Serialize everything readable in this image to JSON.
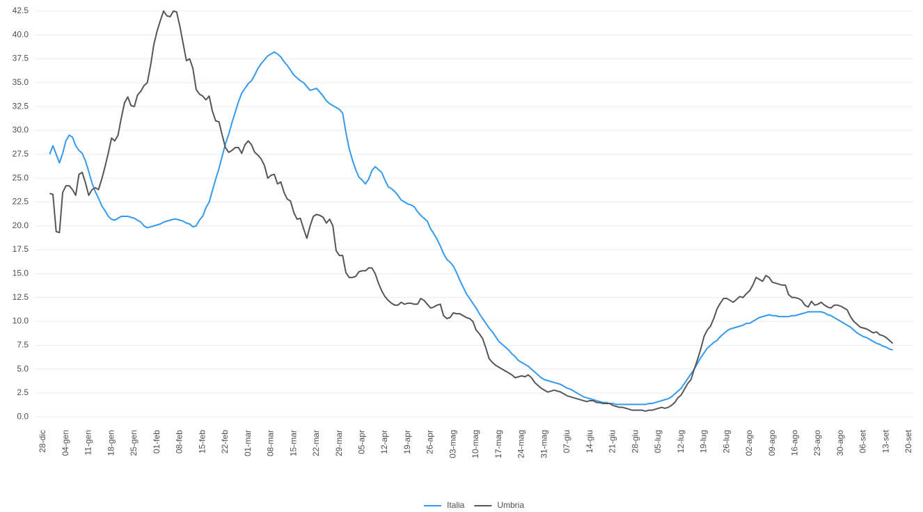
{
  "chart_data": {
    "type": "line",
    "categories": [
      "28-dic",
      null,
      null,
      null,
      null,
      null,
      null,
      "04-gen",
      null,
      null,
      null,
      null,
      null,
      null,
      "11-gen",
      null,
      null,
      null,
      null,
      null,
      null,
      "18-gen",
      null,
      null,
      null,
      null,
      null,
      null,
      "25-gen",
      null,
      null,
      null,
      null,
      null,
      null,
      "01-feb",
      null,
      null,
      null,
      null,
      null,
      null,
      "08-feb",
      null,
      null,
      null,
      null,
      null,
      null,
      "15-feb",
      null,
      null,
      null,
      null,
      null,
      null,
      "22-feb",
      null,
      null,
      null,
      null,
      null,
      null,
      "01-mar",
      null,
      null,
      null,
      null,
      null,
      null,
      "08-mar",
      null,
      null,
      null,
      null,
      null,
      null,
      "15-mar",
      null,
      null,
      null,
      null,
      null,
      null,
      "22-mar",
      null,
      null,
      null,
      null,
      null,
      null,
      "29-mar",
      null,
      null,
      null,
      null,
      null,
      null,
      "05-apr",
      null,
      null,
      null,
      null,
      null,
      null,
      "12-apr",
      null,
      null,
      null,
      null,
      null,
      null,
      "19-apr",
      null,
      null,
      null,
      null,
      null,
      null,
      "26-apr",
      null,
      null,
      null,
      null,
      null,
      null,
      "03-mag",
      null,
      null,
      null,
      null,
      null,
      null,
      "10-mag",
      null,
      null,
      null,
      null,
      null,
      null,
      "17-mag",
      null,
      null,
      null,
      null,
      null,
      null,
      "24-mag",
      null,
      null,
      null,
      null,
      null,
      null,
      "31-mag",
      null,
      null,
      null,
      null,
      null,
      null,
      "07-giu",
      null,
      null,
      null,
      null,
      null,
      null,
      "14-giu",
      null,
      null,
      null,
      null,
      null,
      null,
      "21-giu",
      null,
      null,
      null,
      null,
      null,
      null,
      "28-giu",
      null,
      null,
      null,
      null,
      null,
      null,
      "05-lug",
      null,
      null,
      null,
      null,
      null,
      null,
      "12-lug",
      null,
      null,
      null,
      null,
      null,
      null,
      "19-lug",
      null,
      null,
      null,
      null,
      null,
      null,
      "26-lug",
      null,
      null,
      null,
      null,
      null,
      null,
      "02-ago",
      null,
      null,
      null,
      null,
      null,
      null,
      "09-ago",
      null,
      null,
      null,
      null,
      null,
      null,
      "16-ago",
      null,
      null,
      null,
      null,
      null,
      null,
      "23-ago",
      null,
      null,
      null,
      null,
      null,
      null,
      "30-ago",
      null,
      null,
      null,
      null,
      null,
      null,
      "06-set",
      null,
      null,
      null,
      null,
      null,
      null,
      "13-set",
      null,
      null,
      null,
      null,
      null,
      null,
      "20-set"
    ],
    "series": [
      {
        "name": "Italia",
        "color": "#3399ee",
        "values": [
          null,
          null,
          27.5,
          28.4,
          27.5,
          26.6,
          27.6,
          28.9,
          29.5,
          29.3,
          28.4,
          27.9,
          27.6,
          26.8,
          25.7,
          24.5,
          23.6,
          22.9,
          22.1,
          21.6,
          21.0,
          20.7,
          20.6,
          20.8,
          21.0,
          21.0,
          21.0,
          20.9,
          20.8,
          20.6,
          20.4,
          20.0,
          19.8,
          19.9,
          20.0,
          20.1,
          20.2,
          20.4,
          20.5,
          20.6,
          20.7,
          20.7,
          20.6,
          20.5,
          20.3,
          20.2,
          19.9,
          20.0,
          20.6,
          21.0,
          21.9,
          22.5,
          23.7,
          24.9,
          26.0,
          27.3,
          28.6,
          29.6,
          30.8,
          31.9,
          33.0,
          33.9,
          34.4,
          34.9,
          35.2,
          35.8,
          36.5,
          37.0,
          37.4,
          37.8,
          38.0,
          38.2,
          38.0,
          37.7,
          37.2,
          36.8,
          36.3,
          35.8,
          35.5,
          35.2,
          35.0,
          34.6,
          34.2,
          34.3,
          34.4,
          34.0,
          33.6,
          33.1,
          32.8,
          32.6,
          32.4,
          32.2,
          31.8,
          29.8,
          28.1,
          26.9,
          25.9,
          25.1,
          24.8,
          24.4,
          24.9,
          25.8,
          26.2,
          25.9,
          25.6,
          24.8,
          24.1,
          23.9,
          23.6,
          23.2,
          22.7,
          22.5,
          22.3,
          22.2,
          22.0,
          21.5,
          21.1,
          20.8,
          20.5,
          19.7,
          19.2,
          18.6,
          17.9,
          17.1,
          16.5,
          16.2,
          15.8,
          15.1,
          14.3,
          13.6,
          12.9,
          12.4,
          11.9,
          11.4,
          10.8,
          10.3,
          9.8,
          9.3,
          8.9,
          8.4,
          7.9,
          7.6,
          7.3,
          7.0,
          6.6,
          6.3,
          5.9,
          5.7,
          5.5,
          5.3,
          5.0,
          4.7,
          4.4,
          4.1,
          3.9,
          3.8,
          3.7,
          3.6,
          3.5,
          3.4,
          3.2,
          3.0,
          2.9,
          2.7,
          2.5,
          2.3,
          2.1,
          2.0,
          1.9,
          1.8,
          1.7,
          1.6,
          1.5,
          1.5,
          1.4,
          1.4,
          1.3,
          1.3,
          1.3,
          1.3,
          1.3,
          1.3,
          1.3,
          1.3,
          1.3,
          1.3,
          1.4,
          1.4,
          1.5,
          1.6,
          1.7,
          1.8,
          1.9,
          2.1,
          2.4,
          2.7,
          3.0,
          3.5,
          4.0,
          4.5,
          5.0,
          5.6,
          6.2,
          6.7,
          7.2,
          7.5,
          7.8,
          8.0,
          8.4,
          8.7,
          9.0,
          9.2,
          9.3,
          9.4,
          9.5,
          9.6,
          9.8,
          9.8,
          10.0,
          10.2,
          10.4,
          10.5,
          10.6,
          10.7,
          10.6,
          10.6,
          10.5,
          10.5,
          10.5,
          10.5,
          10.6,
          10.6,
          10.7,
          10.8,
          10.9,
          11.0,
          11.0,
          11.0,
          11.0,
          11.0,
          10.9,
          10.7,
          10.6,
          10.4,
          10.2,
          10.0,
          9.8,
          9.6,
          9.4,
          9.1,
          8.8,
          8.6,
          8.4,
          8.3,
          8.1,
          7.9,
          7.7,
          7.6,
          7.4,
          7.3,
          7.1,
          7.0,
          null,
          null,
          null,
          null,
          null
        ]
      },
      {
        "name": "Umbria",
        "color": "#555555",
        "values": [
          null,
          null,
          23.4,
          23.3,
          19.4,
          19.3,
          23.5,
          24.2,
          24.2,
          23.8,
          23.2,
          25.4,
          25.6,
          24.5,
          23.2,
          23.8,
          24.0,
          23.8,
          24.9,
          26.2,
          27.6,
          29.2,
          28.9,
          29.5,
          31.3,
          32.9,
          33.5,
          32.6,
          32.5,
          33.7,
          34.1,
          34.7,
          35.0,
          36.8,
          39.0,
          40.4,
          41.5,
          42.5,
          42.0,
          41.9,
          42.5,
          42.4,
          40.9,
          39.1,
          37.3,
          37.5,
          36.5,
          34.3,
          33.8,
          33.6,
          33.2,
          33.6,
          32.0,
          31.0,
          30.9,
          29.5,
          28.2,
          27.7,
          27.9,
          28.2,
          28.2,
          27.6,
          28.5,
          28.9,
          28.5,
          27.7,
          27.4,
          27.0,
          26.3,
          25.0,
          25.3,
          25.4,
          24.4,
          24.6,
          23.5,
          22.8,
          22.6,
          21.4,
          20.7,
          20.8,
          19.7,
          18.7,
          20.0,
          21.0,
          21.2,
          21.1,
          20.9,
          20.3,
          20.7,
          20.0,
          17.4,
          16.9,
          16.9,
          15.1,
          14.6,
          14.6,
          14.7,
          15.2,
          15.3,
          15.3,
          15.6,
          15.6,
          15.0,
          14.0,
          13.2,
          12.6,
          12.2,
          11.9,
          11.7,
          11.7,
          12.0,
          11.8,
          11.9,
          11.9,
          11.8,
          11.8,
          12.4,
          12.2,
          11.8,
          11.4,
          11.5,
          11.7,
          11.8,
          10.6,
          10.3,
          10.4,
          10.9,
          10.8,
          10.8,
          10.6,
          10.4,
          10.3,
          10.0,
          9.1,
          8.7,
          8.2,
          7.2,
          6.1,
          5.7,
          5.4,
          5.2,
          5.0,
          4.8,
          4.6,
          4.4,
          4.1,
          4.2,
          4.3,
          4.2,
          4.4,
          4.1,
          3.6,
          3.3,
          3.0,
          2.8,
          2.6,
          2.7,
          2.8,
          2.7,
          2.6,
          2.4,
          2.2,
          2.1,
          2.0,
          1.9,
          1.8,
          1.7,
          1.6,
          1.7,
          1.7,
          1.5,
          1.5,
          1.4,
          1.4,
          1.4,
          1.2,
          1.1,
          1.0,
          1.0,
          0.9,
          0.8,
          0.7,
          0.7,
          0.7,
          0.7,
          0.6,
          0.7,
          0.7,
          0.8,
          0.9,
          1.0,
          0.9,
          1.0,
          1.2,
          1.5,
          2.0,
          2.3,
          2.9,
          3.5,
          3.9,
          5.0,
          6.0,
          7.1,
          8.4,
          9.1,
          9.5,
          10.3,
          11.3,
          11.9,
          12.4,
          12.4,
          12.2,
          12.0,
          12.3,
          12.6,
          12.5,
          12.9,
          13.2,
          13.8,
          14.6,
          14.4,
          14.2,
          14.8,
          14.6,
          14.1,
          14.0,
          13.9,
          13.8,
          13.8,
          12.8,
          12.5,
          12.5,
          12.4,
          12.2,
          11.7,
          11.5,
          12.1,
          11.7,
          11.8,
          12.0,
          11.7,
          11.5,
          11.4,
          11.7,
          11.7,
          11.6,
          11.4,
          11.2,
          10.5,
          10.0,
          9.7,
          9.4,
          9.3,
          9.2,
          9.0,
          8.8,
          8.9,
          8.6,
          8.5,
          8.3,
          8.0,
          7.7,
          null,
          null,
          null,
          null,
          null
        ]
      }
    ],
    "ylim": [
      -1,
      43
    ],
    "yticks": [
      {
        "value": 0,
        "label": "0.0"
      },
      2.5,
      {
        "value": 5,
        "label": "5.0"
      },
      7.5,
      {
        "value": 10,
        "label": "10.0"
      },
      12.5,
      {
        "value": 15,
        "label": "15.0"
      },
      17.5,
      {
        "value": 20,
        "label": "20.0"
      },
      22.5,
      {
        "value": 25,
        "label": "25.0"
      },
      27.5,
      {
        "value": 30,
        "label": "30.0"
      },
      32.5,
      {
        "value": 35,
        "label": "35.0"
      },
      37.5,
      {
        "value": 40,
        "label": "40.0"
      },
      42.5
    ],
    "grid": true,
    "legend": "bottom"
  }
}
